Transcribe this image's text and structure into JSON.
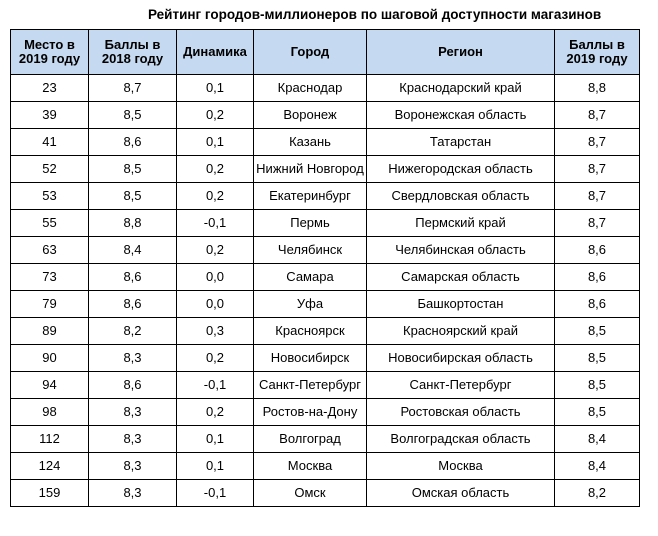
{
  "title": "Рейтинг городов-миллионеров  по шаговой доступности магазинов",
  "columns": [
    "Место в 2019 году",
    "Баллы в 2018 году",
    "Динамика",
    "Город",
    "Регион",
    "Баллы в 2019 году"
  ],
  "rows": [
    [
      "23",
      "8,7",
      "0,1",
      "Краснодар",
      "Краснодарский край",
      "8,8"
    ],
    [
      "39",
      "8,5",
      "0,2",
      "Воронеж",
      "Воронежская область",
      "8,7"
    ],
    [
      "41",
      "8,6",
      "0,1",
      "Казань",
      "Татарстан",
      "8,7"
    ],
    [
      "52",
      "8,5",
      "0,2",
      "Нижний Новгород",
      "Нижегородская область",
      "8,7"
    ],
    [
      "53",
      "8,5",
      "0,2",
      "Екатеринбург",
      "Свердловская область",
      "8,7"
    ],
    [
      "55",
      "8,8",
      "-0,1",
      "Пермь",
      "Пермский край",
      "8,7"
    ],
    [
      "63",
      "8,4",
      "0,2",
      "Челябинск",
      "Челябинская область",
      "8,6"
    ],
    [
      "73",
      "8,6",
      "0,0",
      "Самара",
      "Самарская область",
      "8,6"
    ],
    [
      "79",
      "8,6",
      "0,0",
      "Уфа",
      "Башкортостан",
      "8,6"
    ],
    [
      "89",
      "8,2",
      "0,3",
      "Красноярск",
      "Красноярский край",
      "8,5"
    ],
    [
      "90",
      "8,3",
      "0,2",
      "Новосибирск",
      "Новосибирская область",
      "8,5"
    ],
    [
      "94",
      "8,6",
      "-0,1",
      "Санкт-Петербург",
      "Санкт-Петербург",
      "8,5"
    ],
    [
      "98",
      "8,3",
      "0,2",
      "Ростов-на-Дону",
      "Ростовская область",
      "8,5"
    ],
    [
      "112",
      "8,3",
      "0,1",
      "Волгоград",
      "Волгоградская область",
      "8,4"
    ],
    [
      "124",
      "8,3",
      "0,1",
      "Москва",
      "Москва",
      "8,4"
    ],
    [
      "159",
      "8,3",
      "-0,1",
      "Омск",
      "Омская область",
      "8,2"
    ]
  ],
  "colors": {
    "header_background": "#c5d9f1",
    "border": "#000000"
  }
}
